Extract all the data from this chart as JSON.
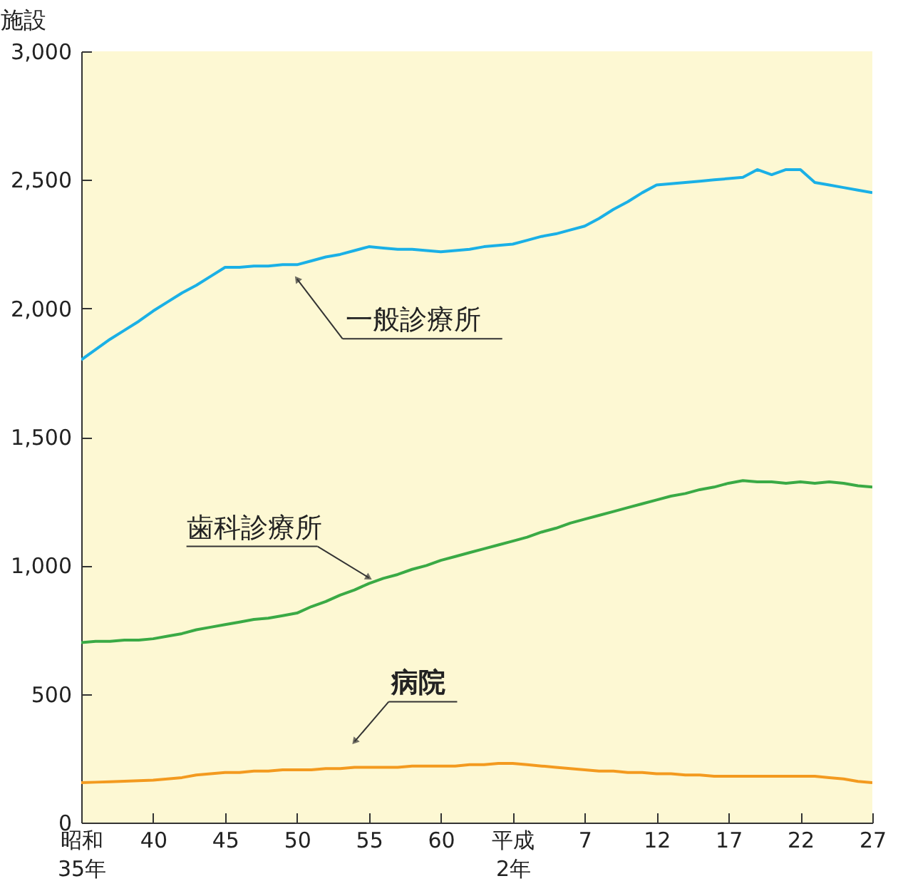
{
  "chart_data": {
    "type": "line",
    "ylabel": "施設",
    "ylim": [
      0,
      3000
    ],
    "categories": [
      "昭和\n35年",
      null,
      null,
      null,
      null,
      "40",
      null,
      null,
      null,
      null,
      "45",
      null,
      null,
      null,
      null,
      "50",
      null,
      null,
      null,
      null,
      "55",
      null,
      null,
      null,
      null,
      "60",
      null,
      null,
      null,
      null,
      "平成\n2年",
      null,
      null,
      null,
      null,
      "7",
      null,
      null,
      null,
      null,
      "12",
      null,
      null,
      null,
      null,
      "17",
      null,
      null,
      null,
      null,
      "22",
      null,
      null,
      null,
      null,
      "27"
    ],
    "yticks": [
      0,
      500,
      {
        "value": 1000,
        "label": "1,000"
      },
      {
        "value": 1500,
        "label": "1,500"
      },
      {
        "value": 2000,
        "label": "2,000"
      },
      {
        "value": 2500,
        "label": "2,500"
      },
      {
        "value": 3000,
        "label": "3,000"
      }
    ],
    "series": [
      {
        "name": "一般診療所",
        "color": "#1ab0e6",
        "values": [
          1800,
          1840,
          1880,
          1915,
          1950,
          1990,
          2025,
          2060,
          2090,
          2125,
          2160,
          2160,
          2165,
          2165,
          2170,
          2170,
          2185,
          2200,
          2210,
          2225,
          2240,
          2235,
          2230,
          2230,
          2225,
          2220,
          2225,
          2230,
          2240,
          2245,
          2250,
          2265,
          2280,
          2290,
          2305,
          2320,
          2350,
          2385,
          2415,
          2450,
          2480,
          2485,
          2490,
          2495,
          2500,
          2505,
          2510,
          2540,
          2520,
          2540,
          2540,
          2490,
          2480,
          2470,
          2460,
          2450
        ]
      },
      {
        "name": "歯科診療所",
        "color": "#3aaa45",
        "values": [
          700,
          705,
          705,
          710,
          710,
          715,
          725,
          735,
          750,
          760,
          770,
          780,
          790,
          795,
          805,
          815,
          840,
          860,
          885,
          905,
          930,
          950,
          965,
          985,
          1000,
          1020,
          1035,
          1050,
          1065,
          1080,
          1095,
          1110,
          1130,
          1145,
          1165,
          1180,
          1195,
          1210,
          1225,
          1240,
          1255,
          1270,
          1280,
          1295,
          1305,
          1320,
          1330,
          1325,
          1325,
          1320,
          1325,
          1320,
          1325,
          1320,
          1310,
          1305
        ]
      },
      {
        "name": "病院",
        "color": "#f39a1f",
        "values": [
          155,
          157,
          159,
          161,
          163,
          165,
          170,
          175,
          185,
          190,
          195,
          195,
          200,
          200,
          205,
          205,
          205,
          210,
          210,
          215,
          215,
          215,
          215,
          220,
          220,
          220,
          220,
          225,
          225,
          230,
          230,
          225,
          220,
          215,
          210,
          205,
          200,
          200,
          195,
          195,
          190,
          190,
          185,
          185,
          180,
          180,
          180,
          180,
          180,
          180,
          180,
          180,
          175,
          170,
          160,
          155
        ]
      }
    ]
  }
}
